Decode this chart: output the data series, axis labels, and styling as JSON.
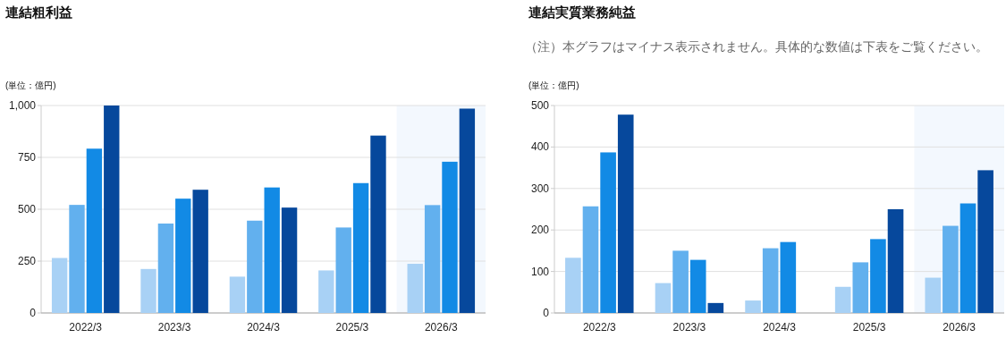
{
  "chart_data": [
    {
      "type": "bar",
      "title": "連結粗利益",
      "ylabel": "(単位：億円)",
      "categories": [
        "2022/3",
        "2023/3",
        "2024/3",
        "2025/3",
        "2026/3"
      ],
      "ylim": [
        0,
        1000
      ],
      "yticks": [
        0,
        {
          "value": 250,
          "label": "250"
        },
        {
          "value": 500,
          "label": "500"
        },
        {
          "value": 750,
          "label": "750"
        },
        {
          "value": 1000,
          "label": "1,000"
        }
      ],
      "grid": "y",
      "bands": [
        {
          "axis": "x",
          "from": "2026/3",
          "to": "2026/3",
          "color": "#f3f8fe"
        }
      ],
      "series": [
        {
          "color": "#a8d1f5",
          "values": [
            265,
            212,
            175,
            205,
            237
          ]
        },
        {
          "color": "#62b0ee",
          "values": [
            521,
            431,
            445,
            412,
            520
          ]
        },
        {
          "color": "#128ae5",
          "values": [
            792,
            551,
            605,
            626,
            729
          ]
        },
        {
          "color": "#06489c",
          "values": [
            1000,
            594,
            508,
            855,
            985
          ]
        }
      ]
    },
    {
      "type": "bar",
      "title": "連結実質業務純益",
      "subtitle": "（注）本グラフはマイナス表示されません。具体的な数値は下表をご覧ください。",
      "ylabel": "(単位：億円)",
      "categories": [
        "2022/3",
        "2023/3",
        "2024/3",
        "2025/3",
        "2026/3"
      ],
      "ylim": [
        0,
        500
      ],
      "yticks": [
        0,
        100,
        200,
        300,
        400,
        500
      ],
      "grid": "y",
      "bands": [
        {
          "axis": "x",
          "from": "2026/3",
          "to": "2026/3",
          "color": "#f3f8fe"
        }
      ],
      "series": [
        {
          "color": "#a8d1f5",
          "values": [
            133,
            72,
            30,
            63,
            85
          ]
        },
        {
          "color": "#62b0ee",
          "values": [
            257,
            150,
            156,
            122,
            210
          ]
        },
        {
          "color": "#128ae5",
          "values": [
            387,
            128,
            171,
            178,
            264
          ]
        },
        {
          "color": "#06489c",
          "values": [
            478,
            24,
            null,
            250,
            344
          ]
        }
      ]
    }
  ]
}
